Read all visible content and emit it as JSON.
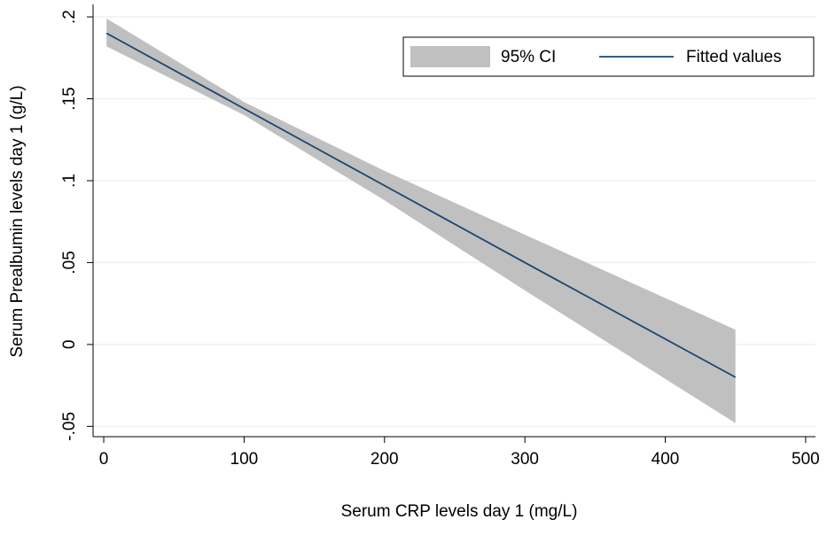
{
  "chart_data": {
    "type": "line",
    "x_label": "Serum CRP levels day 1 (mg/L)",
    "y_label": "Serum Prealbumin levels day 1 (g/L)",
    "x": [
      2,
      100,
      200,
      300,
      450
    ],
    "series": [
      {
        "name": "95% CI",
        "kind": "band",
        "color": "#c0c0c0",
        "upper": [
          0.199,
          0.148,
          0.106,
          0.067,
          0.009
        ],
        "lower": [
          0.182,
          0.14,
          0.088,
          0.033,
          -0.048
        ]
      },
      {
        "name": "Fitted values",
        "kind": "line",
        "color": "#1a476f",
        "values": [
          0.19,
          0.144,
          0.097,
          0.05,
          -0.02
        ]
      }
    ],
    "xlim": [
      -7.6,
      507
    ],
    "xticks": [
      0,
      100,
      200,
      300,
      400,
      500
    ],
    "ylim": [
      -0.0563,
      0.2076
    ],
    "yticks": [
      {
        "value": -0.05,
        "label": "-.05"
      },
      0,
      {
        "value": 0.05,
        "label": ".05"
      },
      {
        "value": 0.1,
        "label": ".1"
      },
      {
        "value": 0.15,
        "label": ".15"
      },
      {
        "value": 0.2,
        "label": ".2"
      }
    ],
    "grid": true,
    "legend": "top-right"
  }
}
